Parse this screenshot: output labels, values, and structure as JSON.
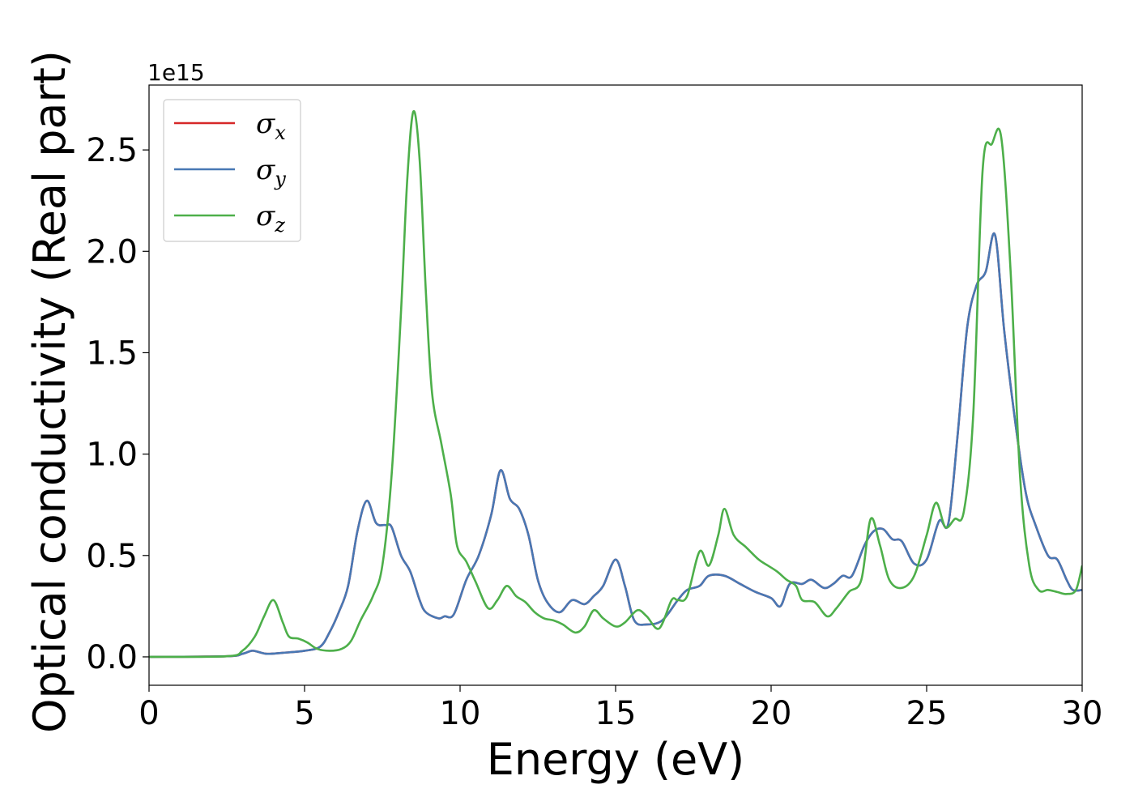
{
  "chart_data": {
    "type": "line",
    "xlabel": "Energy (eV)",
    "ylabel": "Optical conductivity (Real part)",
    "y_offset_label": "1e15",
    "xlim": [
      0,
      30
    ],
    "ylim": [
      -0.14,
      2.82
    ],
    "x_ticks": [
      "0",
      "5",
      "10",
      "15",
      "20",
      "25",
      "30"
    ],
    "y_ticks": [
      "0.0",
      "0.5",
      "1.0",
      "1.5",
      "2.0",
      "2.5"
    ],
    "grid": false,
    "legend_position": "top-left",
    "series": [
      {
        "name": "σx",
        "symbol": "σ",
        "subscript": "x",
        "color": "#d62728",
        "points": [
          [
            0,
            0
          ],
          [
            2.5,
            0.003
          ],
          [
            3.0,
            0.015
          ],
          [
            3.3,
            0.03
          ],
          [
            3.5,
            0.025
          ],
          [
            3.8,
            0.015
          ],
          [
            4.3,
            0.02
          ],
          [
            5.0,
            0.03
          ],
          [
            5.5,
            0.05
          ],
          [
            5.8,
            0.12
          ],
          [
            6.1,
            0.22
          ],
          [
            6.4,
            0.35
          ],
          [
            6.7,
            0.62
          ],
          [
            7.0,
            0.77
          ],
          [
            7.3,
            0.66
          ],
          [
            7.6,
            0.65
          ],
          [
            7.8,
            0.64
          ],
          [
            8.1,
            0.5
          ],
          [
            8.4,
            0.42
          ],
          [
            8.7,
            0.28
          ],
          [
            8.9,
            0.22
          ],
          [
            9.3,
            0.19
          ],
          [
            9.5,
            0.2
          ],
          [
            9.8,
            0.21
          ],
          [
            10.2,
            0.38
          ],
          [
            10.6,
            0.5
          ],
          [
            11.0,
            0.7
          ],
          [
            11.3,
            0.92
          ],
          [
            11.6,
            0.78
          ],
          [
            11.9,
            0.73
          ],
          [
            12.2,
            0.6
          ],
          [
            12.5,
            0.38
          ],
          [
            12.8,
            0.27
          ],
          [
            13.2,
            0.22
          ],
          [
            13.6,
            0.28
          ],
          [
            14.0,
            0.26
          ],
          [
            14.3,
            0.3
          ],
          [
            14.6,
            0.35
          ],
          [
            15.0,
            0.48
          ],
          [
            15.3,
            0.35
          ],
          [
            15.6,
            0.18
          ],
          [
            16.0,
            0.16
          ],
          [
            16.5,
            0.18
          ],
          [
            17.0,
            0.28
          ],
          [
            17.3,
            0.33
          ],
          [
            17.7,
            0.35
          ],
          [
            18.0,
            0.4
          ],
          [
            18.5,
            0.4
          ],
          [
            19.0,
            0.36
          ],
          [
            19.5,
            0.32
          ],
          [
            20.0,
            0.29
          ],
          [
            20.3,
            0.25
          ],
          [
            20.6,
            0.36
          ],
          [
            21.0,
            0.36
          ],
          [
            21.3,
            0.38
          ],
          [
            21.7,
            0.34
          ],
          [
            22.0,
            0.36
          ],
          [
            22.3,
            0.4
          ],
          [
            22.6,
            0.4
          ],
          [
            23.0,
            0.55
          ],
          [
            23.3,
            0.62
          ],
          [
            23.6,
            0.63
          ],
          [
            23.9,
            0.58
          ],
          [
            24.2,
            0.57
          ],
          [
            24.6,
            0.46
          ],
          [
            25.0,
            0.48
          ],
          [
            25.4,
            0.67
          ],
          [
            25.7,
            0.66
          ],
          [
            26.0,
            1.1
          ],
          [
            26.3,
            1.62
          ],
          [
            26.6,
            1.83
          ],
          [
            26.9,
            1.9
          ],
          [
            27.2,
            2.08
          ],
          [
            27.5,
            1.6
          ],
          [
            27.9,
            1.1
          ],
          [
            28.2,
            0.8
          ],
          [
            28.5,
            0.65
          ],
          [
            28.9,
            0.5
          ],
          [
            29.2,
            0.48
          ],
          [
            29.5,
            0.38
          ],
          [
            29.7,
            0.33
          ],
          [
            30.0,
            0.33
          ]
        ]
      },
      {
        "name": "σy",
        "symbol": "σ",
        "subscript": "y",
        "color": "#4878b4",
        "points": [
          [
            0,
            0
          ],
          [
            2.5,
            0.003
          ],
          [
            3.0,
            0.015
          ],
          [
            3.3,
            0.03
          ],
          [
            3.5,
            0.025
          ],
          [
            3.8,
            0.015
          ],
          [
            4.3,
            0.02
          ],
          [
            5.0,
            0.03
          ],
          [
            5.5,
            0.05
          ],
          [
            5.8,
            0.12
          ],
          [
            6.1,
            0.22
          ],
          [
            6.4,
            0.35
          ],
          [
            6.7,
            0.62
          ],
          [
            7.0,
            0.77
          ],
          [
            7.3,
            0.66
          ],
          [
            7.6,
            0.65
          ],
          [
            7.8,
            0.64
          ],
          [
            8.1,
            0.5
          ],
          [
            8.4,
            0.42
          ],
          [
            8.7,
            0.28
          ],
          [
            8.9,
            0.22
          ],
          [
            9.3,
            0.19
          ],
          [
            9.5,
            0.2
          ],
          [
            9.8,
            0.21
          ],
          [
            10.2,
            0.38
          ],
          [
            10.6,
            0.5
          ],
          [
            11.0,
            0.7
          ],
          [
            11.3,
            0.92
          ],
          [
            11.6,
            0.78
          ],
          [
            11.9,
            0.73
          ],
          [
            12.2,
            0.6
          ],
          [
            12.5,
            0.38
          ],
          [
            12.8,
            0.27
          ],
          [
            13.2,
            0.22
          ],
          [
            13.6,
            0.28
          ],
          [
            14.0,
            0.26
          ],
          [
            14.3,
            0.3
          ],
          [
            14.6,
            0.35
          ],
          [
            15.0,
            0.48
          ],
          [
            15.3,
            0.35
          ],
          [
            15.6,
            0.18
          ],
          [
            16.0,
            0.16
          ],
          [
            16.5,
            0.18
          ],
          [
            17.0,
            0.28
          ],
          [
            17.3,
            0.33
          ],
          [
            17.7,
            0.35
          ],
          [
            18.0,
            0.4
          ],
          [
            18.5,
            0.4
          ],
          [
            19.0,
            0.36
          ],
          [
            19.5,
            0.32
          ],
          [
            20.0,
            0.29
          ],
          [
            20.3,
            0.25
          ],
          [
            20.6,
            0.36
          ],
          [
            21.0,
            0.36
          ],
          [
            21.3,
            0.38
          ],
          [
            21.7,
            0.34
          ],
          [
            22.0,
            0.36
          ],
          [
            22.3,
            0.4
          ],
          [
            22.6,
            0.4
          ],
          [
            23.0,
            0.55
          ],
          [
            23.3,
            0.62
          ],
          [
            23.6,
            0.63
          ],
          [
            23.9,
            0.58
          ],
          [
            24.2,
            0.57
          ],
          [
            24.6,
            0.46
          ],
          [
            25.0,
            0.48
          ],
          [
            25.4,
            0.67
          ],
          [
            25.7,
            0.66
          ],
          [
            26.0,
            1.1
          ],
          [
            26.3,
            1.62
          ],
          [
            26.6,
            1.83
          ],
          [
            26.9,
            1.9
          ],
          [
            27.2,
            2.08
          ],
          [
            27.5,
            1.6
          ],
          [
            27.9,
            1.1
          ],
          [
            28.2,
            0.8
          ],
          [
            28.5,
            0.65
          ],
          [
            28.9,
            0.5
          ],
          [
            29.2,
            0.48
          ],
          [
            29.5,
            0.38
          ],
          [
            29.7,
            0.33
          ],
          [
            30.0,
            0.33
          ]
        ]
      },
      {
        "name": "σz",
        "symbol": "σ",
        "subscript": "z",
        "color": "#4daf4a",
        "points": [
          [
            0,
            0
          ],
          [
            2.5,
            0.003
          ],
          [
            3.0,
            0.03
          ],
          [
            3.4,
            0.1
          ],
          [
            3.7,
            0.2
          ],
          [
            4.0,
            0.28
          ],
          [
            4.3,
            0.17
          ],
          [
            4.5,
            0.1
          ],
          [
            4.8,
            0.09
          ],
          [
            5.1,
            0.07
          ],
          [
            5.4,
            0.04
          ],
          [
            5.8,
            0.03
          ],
          [
            6.2,
            0.04
          ],
          [
            6.5,
            0.08
          ],
          [
            6.8,
            0.18
          ],
          [
            7.2,
            0.3
          ],
          [
            7.5,
            0.45
          ],
          [
            7.8,
            0.9
          ],
          [
            8.1,
            1.7
          ],
          [
            8.3,
            2.35
          ],
          [
            8.5,
            2.69
          ],
          [
            8.7,
            2.45
          ],
          [
            8.9,
            1.8
          ],
          [
            9.1,
            1.3
          ],
          [
            9.4,
            1.05
          ],
          [
            9.7,
            0.8
          ],
          [
            9.9,
            0.55
          ],
          [
            10.2,
            0.47
          ],
          [
            10.5,
            0.37
          ],
          [
            10.9,
            0.24
          ],
          [
            11.2,
            0.28
          ],
          [
            11.5,
            0.35
          ],
          [
            11.8,
            0.3
          ],
          [
            12.1,
            0.27
          ],
          [
            12.4,
            0.22
          ],
          [
            12.7,
            0.19
          ],
          [
            13.0,
            0.18
          ],
          [
            13.3,
            0.16
          ],
          [
            13.7,
            0.12
          ],
          [
            14.0,
            0.15
          ],
          [
            14.3,
            0.23
          ],
          [
            14.6,
            0.19
          ],
          [
            15.0,
            0.15
          ],
          [
            15.3,
            0.17
          ],
          [
            15.7,
            0.23
          ],
          [
            16.0,
            0.2
          ],
          [
            16.4,
            0.14
          ],
          [
            16.8,
            0.28
          ],
          [
            17.0,
            0.28
          ],
          [
            17.3,
            0.3
          ],
          [
            17.7,
            0.52
          ],
          [
            18.0,
            0.45
          ],
          [
            18.3,
            0.6
          ],
          [
            18.5,
            0.73
          ],
          [
            18.8,
            0.6
          ],
          [
            19.2,
            0.54
          ],
          [
            19.6,
            0.48
          ],
          [
            19.9,
            0.45
          ],
          [
            20.2,
            0.42
          ],
          [
            20.5,
            0.38
          ],
          [
            20.8,
            0.35
          ],
          [
            21.0,
            0.28
          ],
          [
            21.4,
            0.27
          ],
          [
            21.8,
            0.2
          ],
          [
            22.1,
            0.24
          ],
          [
            22.5,
            0.32
          ],
          [
            22.9,
            0.38
          ],
          [
            23.2,
            0.68
          ],
          [
            23.5,
            0.55
          ],
          [
            23.8,
            0.38
          ],
          [
            24.2,
            0.34
          ],
          [
            24.6,
            0.4
          ],
          [
            25.0,
            0.6
          ],
          [
            25.3,
            0.76
          ],
          [
            25.6,
            0.64
          ],
          [
            25.9,
            0.68
          ],
          [
            26.2,
            0.72
          ],
          [
            26.5,
            1.2
          ],
          [
            26.8,
            2.4
          ],
          [
            27.1,
            2.53
          ],
          [
            27.4,
            2.56
          ],
          [
            27.7,
            1.9
          ],
          [
            28.0,
            0.9
          ],
          [
            28.3,
            0.45
          ],
          [
            28.6,
            0.33
          ],
          [
            28.9,
            0.33
          ],
          [
            29.2,
            0.32
          ],
          [
            29.5,
            0.31
          ],
          [
            29.8,
            0.33
          ],
          [
            30.0,
            0.45
          ]
        ]
      }
    ]
  }
}
